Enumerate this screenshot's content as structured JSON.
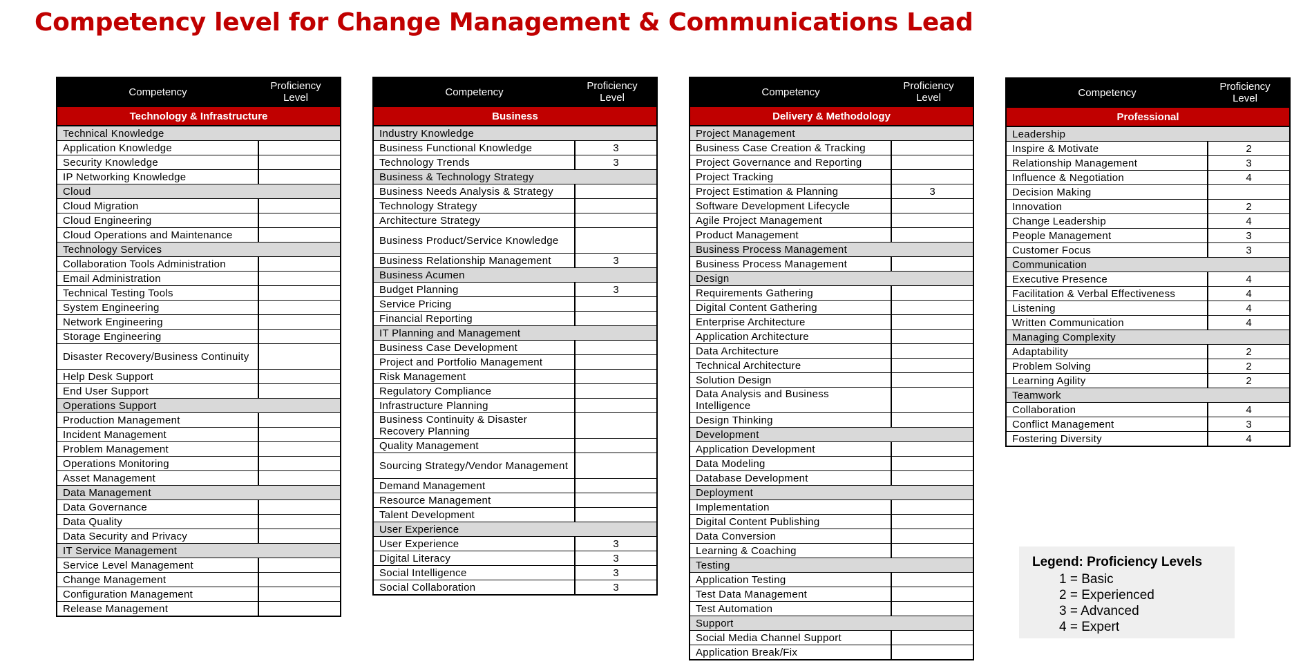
{
  "title": "Competency level for Change Management & Communications Lead",
  "header": {
    "competency": "Competency",
    "proficiency_line1": "Proficiency",
    "proficiency_line2": "Level"
  },
  "colors": {
    "title_red": "#c00000",
    "category_red": "#c00000",
    "section_gray": "#d9d9d9",
    "header_black": "#000000",
    "legend_bg": "#efefef"
  },
  "tables": [
    {
      "category": "Technology & Infrastructure",
      "rows": [
        {
          "type": "section",
          "text": "Technical Knowledge"
        },
        {
          "type": "item",
          "text": "Application Knowledge",
          "level": ""
        },
        {
          "type": "item",
          "text": "Security Knowledge",
          "level": ""
        },
        {
          "type": "item",
          "text": "IP Networking Knowledge",
          "level": ""
        },
        {
          "type": "section",
          "text": "Cloud"
        },
        {
          "type": "item",
          "text": "Cloud Migration",
          "level": ""
        },
        {
          "type": "item",
          "text": "Cloud Engineering",
          "level": ""
        },
        {
          "type": "item",
          "text": "Cloud Operations and Maintenance",
          "level": ""
        },
        {
          "type": "section",
          "text": "Technology Services"
        },
        {
          "type": "item",
          "text": "Collaboration Tools Administration",
          "level": ""
        },
        {
          "type": "item",
          "text": "Email Administration",
          "level": ""
        },
        {
          "type": "item",
          "text": "Technical Testing Tools",
          "level": ""
        },
        {
          "type": "item",
          "text": "System Engineering",
          "level": ""
        },
        {
          "type": "item",
          "text": "Network Engineering",
          "level": ""
        },
        {
          "type": "item",
          "text": "Storage Engineering",
          "level": ""
        },
        {
          "type": "item",
          "text": "Disaster Recovery/Business Continuity",
          "level": "",
          "tall": true
        },
        {
          "type": "item",
          "text": "Help Desk Support",
          "level": ""
        },
        {
          "type": "item",
          "text": "End User Support",
          "level": ""
        },
        {
          "type": "section",
          "text": "Operations Support"
        },
        {
          "type": "item",
          "text": "Production Management",
          "level": ""
        },
        {
          "type": "item",
          "text": "Incident Management",
          "level": ""
        },
        {
          "type": "item",
          "text": "Problem Management",
          "level": ""
        },
        {
          "type": "item",
          "text": "Operations Monitoring",
          "level": ""
        },
        {
          "type": "item",
          "text": "Asset Management",
          "level": ""
        },
        {
          "type": "section",
          "text": "Data Management"
        },
        {
          "type": "item",
          "text": "Data Governance",
          "level": ""
        },
        {
          "type": "item",
          "text": "Data Quality",
          "level": ""
        },
        {
          "type": "item",
          "text": "Data Security and Privacy",
          "level": ""
        },
        {
          "type": "section",
          "text": "IT Service Management"
        },
        {
          "type": "item",
          "text": "Service Level Management",
          "level": ""
        },
        {
          "type": "item",
          "text": "Change Management",
          "level": ""
        },
        {
          "type": "item",
          "text": "Configuration Management",
          "level": ""
        },
        {
          "type": "item",
          "text": "Release Management",
          "level": ""
        }
      ]
    },
    {
      "category": "Business",
      "rows": [
        {
          "type": "section",
          "text": "Industry Knowledge"
        },
        {
          "type": "item",
          "text": "Business Functional Knowledge",
          "level": "3"
        },
        {
          "type": "item",
          "text": "Technology Trends",
          "level": "3"
        },
        {
          "type": "section",
          "text": "Business & Technology Strategy"
        },
        {
          "type": "item",
          "text": "Business Needs Analysis & Strategy",
          "level": ""
        },
        {
          "type": "item",
          "text": "Technology Strategy",
          "level": ""
        },
        {
          "type": "item",
          "text": "Architecture Strategy",
          "level": ""
        },
        {
          "type": "item",
          "text": "Business Product/Service Knowledge",
          "level": "",
          "tall": true
        },
        {
          "type": "item",
          "text": "Business Relationship Management",
          "level": "3"
        },
        {
          "type": "section",
          "text": "Business Acumen"
        },
        {
          "type": "item",
          "text": "Budget Planning",
          "level": "3"
        },
        {
          "type": "item",
          "text": "Service Pricing",
          "level": ""
        },
        {
          "type": "item",
          "text": "Financial Reporting",
          "level": ""
        },
        {
          "type": "section",
          "text": "IT Planning and Management"
        },
        {
          "type": "item",
          "text": "Business Case Development",
          "level": ""
        },
        {
          "type": "item",
          "text": "Project and Portfolio Management",
          "level": ""
        },
        {
          "type": "item",
          "text": "Risk Management",
          "level": ""
        },
        {
          "type": "item",
          "text": "Regulatory Compliance",
          "level": ""
        },
        {
          "type": "item",
          "text": "Infrastructure Planning",
          "level": ""
        },
        {
          "type": "item",
          "text": "Business Continuity & Disaster Recovery Planning",
          "level": "",
          "tall": true
        },
        {
          "type": "item",
          "text": "Quality Management",
          "level": ""
        },
        {
          "type": "item",
          "text": "Sourcing Strategy/Vendor Management",
          "level": "",
          "tall": true
        },
        {
          "type": "item",
          "text": "Demand Management",
          "level": ""
        },
        {
          "type": "item",
          "text": "Resource Management",
          "level": ""
        },
        {
          "type": "item",
          "text": "Talent Development",
          "level": ""
        },
        {
          "type": "section",
          "text": "User Experience"
        },
        {
          "type": "item",
          "text": "User Experience",
          "level": "3"
        },
        {
          "type": "item",
          "text": "Digital Literacy",
          "level": "3"
        },
        {
          "type": "item",
          "text": "Social Intelligence",
          "level": "3"
        },
        {
          "type": "item",
          "text": "Social Collaboration",
          "level": "3"
        }
      ]
    },
    {
      "category": "Delivery & Methodology",
      "rows": [
        {
          "type": "section",
          "text": "Project Management"
        },
        {
          "type": "item",
          "text": "Business Case Creation & Tracking",
          "level": ""
        },
        {
          "type": "item",
          "text": "Project Governance and Reporting",
          "level": ""
        },
        {
          "type": "item",
          "text": "Project Tracking",
          "level": ""
        },
        {
          "type": "item",
          "text": "Project Estimation & Planning",
          "level": "3"
        },
        {
          "type": "item",
          "text": "Software Development Lifecycle",
          "level": ""
        },
        {
          "type": "item",
          "text": "Agile Project Management",
          "level": ""
        },
        {
          "type": "item",
          "text": "Product Management",
          "level": ""
        },
        {
          "type": "section",
          "text": "Business Process Management"
        },
        {
          "type": "item",
          "text": "Business Process Management",
          "level": ""
        },
        {
          "type": "section",
          "text": "Design"
        },
        {
          "type": "item",
          "text": "Requirements Gathering",
          "level": ""
        },
        {
          "type": "item",
          "text": "Digital Content Gathering",
          "level": ""
        },
        {
          "type": "item",
          "text": "Enterprise Architecture",
          "level": ""
        },
        {
          "type": "item",
          "text": "Application Architecture",
          "level": ""
        },
        {
          "type": "item",
          "text": "Data Architecture",
          "level": ""
        },
        {
          "type": "item",
          "text": "Technical Architecture",
          "level": ""
        },
        {
          "type": "item",
          "text": "Solution Design",
          "level": ""
        },
        {
          "type": "item",
          "text": "Data Analysis and Business Intelligence",
          "level": "",
          "tall": true
        },
        {
          "type": "item",
          "text": "Design Thinking",
          "level": ""
        },
        {
          "type": "section",
          "text": "Development"
        },
        {
          "type": "item",
          "text": "Application Development",
          "level": ""
        },
        {
          "type": "item",
          "text": "Data Modeling",
          "level": ""
        },
        {
          "type": "item",
          "text": "Database Development",
          "level": ""
        },
        {
          "type": "section",
          "text": "Deployment"
        },
        {
          "type": "item",
          "text": "Implementation",
          "level": ""
        },
        {
          "type": "item",
          "text": "Digital Content Publishing",
          "level": ""
        },
        {
          "type": "item",
          "text": "Data Conversion",
          "level": ""
        },
        {
          "type": "item",
          "text": "Learning & Coaching",
          "level": ""
        },
        {
          "type": "section",
          "text": "Testing"
        },
        {
          "type": "item",
          "text": "Application Testing",
          "level": ""
        },
        {
          "type": "item",
          "text": "Test Data Management",
          "level": ""
        },
        {
          "type": "item",
          "text": "Test Automation",
          "level": ""
        },
        {
          "type": "section",
          "text": "Support"
        },
        {
          "type": "item",
          "text": "Social Media Channel Support",
          "level": ""
        },
        {
          "type": "item",
          "text": "Application Break/Fix",
          "level": ""
        }
      ]
    },
    {
      "category": "Professional",
      "rows": [
        {
          "type": "section",
          "text": "Leadership"
        },
        {
          "type": "item",
          "text": "Inspire & Motivate",
          "level": "2"
        },
        {
          "type": "item",
          "text": "Relationship Management",
          "level": "3"
        },
        {
          "type": "item",
          "text": "Influence & Negotiation",
          "level": "4"
        },
        {
          "type": "item",
          "text": "Decision Making",
          "level": ""
        },
        {
          "type": "item",
          "text": "Innovation",
          "level": "2"
        },
        {
          "type": "item",
          "text": "Change Leadership",
          "level": "4"
        },
        {
          "type": "item",
          "text": "People Management",
          "level": "3"
        },
        {
          "type": "item",
          "text": "Customer Focus",
          "level": "3"
        },
        {
          "type": "section",
          "text": "Communication"
        },
        {
          "type": "item",
          "text": "Executive Presence",
          "level": "4"
        },
        {
          "type": "item",
          "text": "Facilitation & Verbal Effectiveness",
          "level": "4"
        },
        {
          "type": "item",
          "text": "Listening",
          "level": "4"
        },
        {
          "type": "item",
          "text": "Written Communication",
          "level": "4"
        },
        {
          "type": "section",
          "text": "Managing Complexity"
        },
        {
          "type": "item",
          "text": "Adaptability",
          "level": "2"
        },
        {
          "type": "item",
          "text": "Problem Solving",
          "level": "2"
        },
        {
          "type": "item",
          "text": "Learning Agility",
          "level": "2"
        },
        {
          "type": "section",
          "text": "Teamwork"
        },
        {
          "type": "item",
          "text": "Collaboration",
          "level": "4"
        },
        {
          "type": "item",
          "text": "Conflict Management",
          "level": "3"
        },
        {
          "type": "item",
          "text": "Fostering Diversity",
          "level": "4"
        }
      ]
    }
  ],
  "legend": {
    "title": "Legend:  Proficiency Levels",
    "items": [
      "1 = Basic",
      "2 = Experienced",
      "3 = Advanced",
      "4 = Expert"
    ]
  }
}
